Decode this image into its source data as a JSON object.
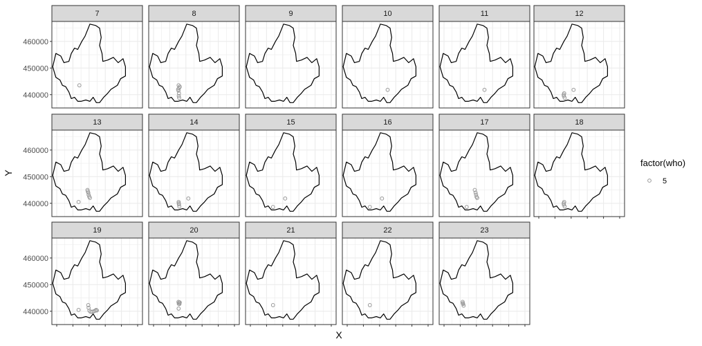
{
  "chart_data": {
    "type": "scatter",
    "facet_variable": "hour",
    "facets": [
      {
        "label": "7",
        "points": [
          [
            -16000,
            443500
          ]
        ]
      },
      {
        "label": "8",
        "points": [
          [
            -14500,
            443500
          ],
          [
            -14200,
            442500
          ],
          [
            -14600,
            441500
          ],
          [
            -14300,
            440500
          ],
          [
            -14400,
            439500
          ],
          [
            -14200,
            438800
          ],
          [
            -13800,
            443000
          ],
          [
            -14800,
            442000
          ]
        ]
      },
      {
        "label": "9",
        "points": []
      },
      {
        "label": "10",
        "points": [
          [
            -5000,
            441800
          ]
        ]
      },
      {
        "label": "11",
        "points": [
          [
            -5000,
            441800
          ]
        ]
      },
      {
        "label": "12",
        "points": [
          [
            -14300,
            440500
          ],
          [
            -14500,
            439500
          ],
          [
            -14000,
            438800
          ],
          [
            -14600,
            440000
          ],
          [
            -8500,
            441800
          ]
        ]
      },
      {
        "label": "13",
        "points": [
          [
            -16500,
            440500
          ],
          [
            -11000,
            445000
          ],
          [
            -10500,
            444000
          ],
          [
            -10300,
            443200
          ],
          [
            -9900,
            442500
          ],
          [
            -9500,
            442000
          ],
          [
            -10800,
            444500
          ]
        ]
      },
      {
        "label": "14",
        "points": [
          [
            -14500,
            440500
          ],
          [
            -14300,
            439600
          ],
          [
            -14100,
            438800
          ],
          [
            -14400,
            440000
          ],
          [
            -8500,
            441800
          ]
        ]
      },
      {
        "label": "15",
        "points": [
          [
            -16000,
            438600
          ],
          [
            -8500,
            441800
          ]
        ]
      },
      {
        "label": "16",
        "points": [
          [
            -16000,
            438600
          ],
          [
            -8500,
            441800
          ]
        ]
      },
      {
        "label": "17",
        "points": [
          [
            -16000,
            438600
          ],
          [
            -11000,
            445000
          ],
          [
            -10500,
            444000
          ],
          [
            -10200,
            443200
          ],
          [
            -9900,
            442400
          ],
          [
            -9500,
            442000
          ]
        ]
      },
      {
        "label": "18",
        "points": [
          [
            -14300,
            440500
          ],
          [
            -14500,
            439500
          ],
          [
            -14000,
            438800
          ],
          [
            -14600,
            440000
          ]
        ]
      },
      {
        "label": "19",
        "points": [
          [
            -16500,
            440500
          ],
          [
            -10500,
            442300
          ],
          [
            -10300,
            441300
          ],
          [
            -9800,
            440200
          ],
          [
            -9000,
            439800
          ],
          [
            -8000,
            439800
          ],
          [
            -7000,
            440000
          ],
          [
            -6200,
            440200
          ],
          [
            -5600,
            440500
          ],
          [
            -5200,
            440300
          ]
        ]
      },
      {
        "label": "20",
        "points": [
          [
            -14600,
            443500
          ],
          [
            -14200,
            443200
          ],
          [
            -13800,
            443300
          ],
          [
            -14400,
            442800
          ],
          [
            -14000,
            442700
          ],
          [
            -14500,
            441000
          ]
        ]
      },
      {
        "label": "21",
        "points": [
          [
            -16000,
            442300
          ]
        ]
      },
      {
        "label": "22",
        "points": [
          [
            -16000,
            442300
          ]
        ]
      },
      {
        "label": "23",
        "points": [
          [
            -18500,
            443500
          ],
          [
            -18200,
            442700
          ],
          [
            -17900,
            442100
          ],
          [
            -18400,
            443000
          ]
        ]
      }
    ],
    "xlabel": "X",
    "ylabel": "Y",
    "xlim": [
      -33000,
      23000
    ],
    "ylim": [
      435000,
      467500
    ],
    "x_ticks": [
      -30000,
      -20000,
      -10000,
      0,
      10000,
      20000
    ],
    "y_ticks": [
      440000,
      450000,
      460000
    ],
    "y_tick_labels": [
      "440000",
      "450000",
      "460000"
    ],
    "grid": true,
    "legend": {
      "title": "factor(who)",
      "entries": [
        "5"
      ],
      "placement": "right"
    },
    "colors": {
      "point": "#999999",
      "strip_fill": "#d9d9d9",
      "panel_border": "#333333",
      "grid": "#ebebeb",
      "boundary": "#000000"
    }
  }
}
